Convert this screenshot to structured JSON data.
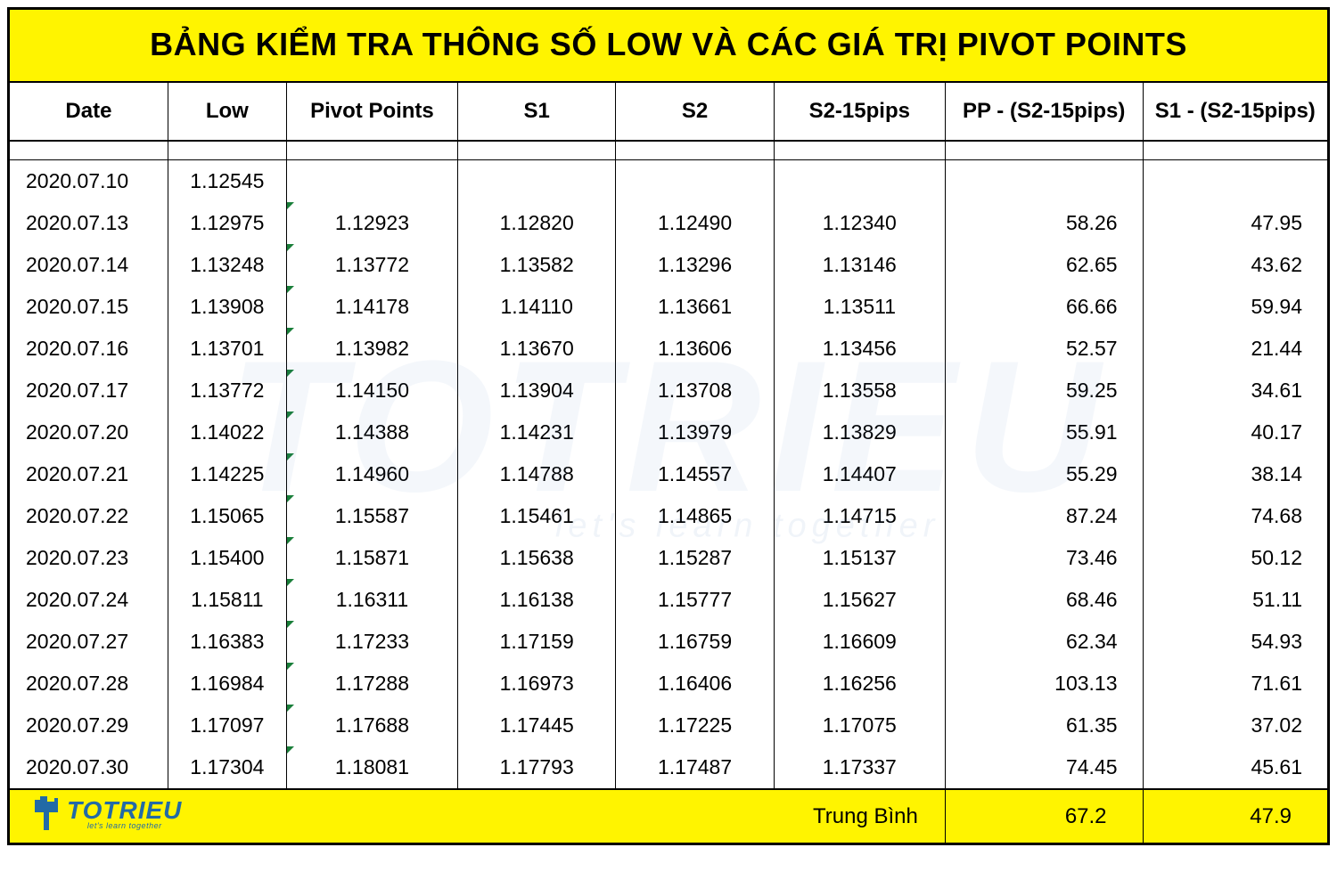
{
  "title": "BẢNG KIỂM TRA THÔNG SỐ LOW VÀ CÁC GIÁ TRỊ PIVOT POINTS",
  "columns": [
    "Date",
    "Low",
    "Pivot Points",
    "S1",
    "S2",
    "S2-15pips",
    "PP - (S2-15pips)",
    "S1 - (S2-15pips)"
  ],
  "col_widths_pct": [
    12,
    9,
    13,
    12,
    12,
    13,
    15,
    14
  ],
  "header_fontsize": 24,
  "cell_fontsize": 23,
  "title_fontsize": 36,
  "title_bg": "#fff400",
  "footer_bg": "#fff400",
  "border_color": "#000000",
  "cell_marker_color": "#1a7f3a",
  "text_color": "#000000",
  "background_color": "#ffffff",
  "rows": [
    {
      "date": "2020.07.10",
      "low": "1.12545",
      "pp": "",
      "s1": "",
      "s2": "",
      "s2m": "",
      "d1": "",
      "d2": ""
    },
    {
      "date": "2020.07.13",
      "low": "1.12975",
      "pp": "1.12923",
      "s1": "1.12820",
      "s2": "1.12490",
      "s2m": "1.12340",
      "d1": "58.26",
      "d2": "47.95"
    },
    {
      "date": "2020.07.14",
      "low": "1.13248",
      "pp": "1.13772",
      "s1": "1.13582",
      "s2": "1.13296",
      "s2m": "1.13146",
      "d1": "62.65",
      "d2": "43.62"
    },
    {
      "date": "2020.07.15",
      "low": "1.13908",
      "pp": "1.14178",
      "s1": "1.14110",
      "s2": "1.13661",
      "s2m": "1.13511",
      "d1": "66.66",
      "d2": "59.94"
    },
    {
      "date": "2020.07.16",
      "low": "1.13701",
      "pp": "1.13982",
      "s1": "1.13670",
      "s2": "1.13606",
      "s2m": "1.13456",
      "d1": "52.57",
      "d2": "21.44"
    },
    {
      "date": "2020.07.17",
      "low": "1.13772",
      "pp": "1.14150",
      "s1": "1.13904",
      "s2": "1.13708",
      "s2m": "1.13558",
      "d1": "59.25",
      "d2": "34.61"
    },
    {
      "date": "2020.07.20",
      "low": "1.14022",
      "pp": "1.14388",
      "s1": "1.14231",
      "s2": "1.13979",
      "s2m": "1.13829",
      "d1": "55.91",
      "d2": "40.17"
    },
    {
      "date": "2020.07.21",
      "low": "1.14225",
      "pp": "1.14960",
      "s1": "1.14788",
      "s2": "1.14557",
      "s2m": "1.14407",
      "d1": "55.29",
      "d2": "38.14"
    },
    {
      "date": "2020.07.22",
      "low": "1.15065",
      "pp": "1.15587",
      "s1": "1.15461",
      "s2": "1.14865",
      "s2m": "1.14715",
      "d1": "87.24",
      "d2": "74.68"
    },
    {
      "date": "2020.07.23",
      "low": "1.15400",
      "pp": "1.15871",
      "s1": "1.15638",
      "s2": "1.15287",
      "s2m": "1.15137",
      "d1": "73.46",
      "d2": "50.12"
    },
    {
      "date": "2020.07.24",
      "low": "1.15811",
      "pp": "1.16311",
      "s1": "1.16138",
      "s2": "1.15777",
      "s2m": "1.15627",
      "d1": "68.46",
      "d2": "51.11"
    },
    {
      "date": "2020.07.27",
      "low": "1.16383",
      "pp": "1.17233",
      "s1": "1.17159",
      "s2": "1.16759",
      "s2m": "1.16609",
      "d1": "62.34",
      "d2": "54.93"
    },
    {
      "date": "2020.07.28",
      "low": "1.16984",
      "pp": "1.17288",
      "s1": "1.16973",
      "s2": "1.16406",
      "s2m": "1.16256",
      "d1": "103.13",
      "d2": "71.61"
    },
    {
      "date": "2020.07.29",
      "low": "1.17097",
      "pp": "1.17688",
      "s1": "1.17445",
      "s2": "1.17225",
      "s2m": "1.17075",
      "d1": "61.35",
      "d2": "37.02"
    },
    {
      "date": "2020.07.30",
      "low": "1.17304",
      "pp": "1.18081",
      "s1": "1.17793",
      "s2": "1.17487",
      "s2m": "1.17337",
      "d1": "74.45",
      "d2": "45.61"
    }
  ],
  "footer": {
    "label": "Trung Bình",
    "avg1": "67.2",
    "avg2": "47.9"
  },
  "watermark": {
    "main": "TOTRIEU",
    "sub": "let's learn together",
    "color": "rgba(60,120,180,0.06)"
  },
  "logo": {
    "brand": "TOTRIEU",
    "tagline": "let's learn together",
    "color": "#226aa6"
  }
}
